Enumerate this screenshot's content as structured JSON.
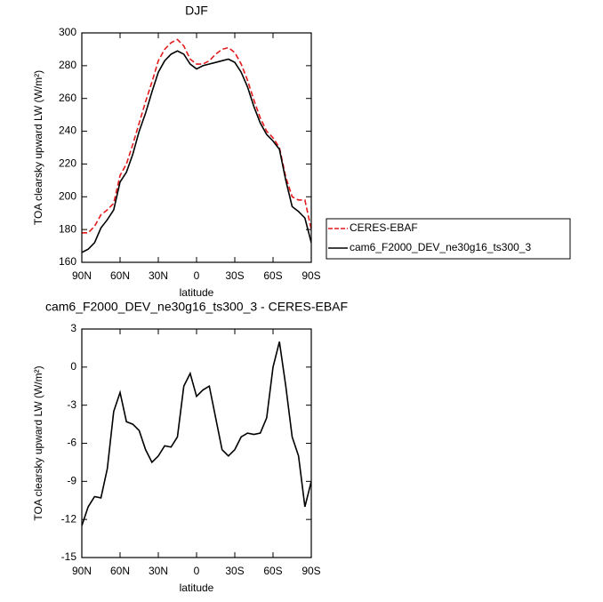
{
  "chart_data": [
    {
      "type": "line",
      "title": "DJF",
      "xlabel": "latitude",
      "ylabel": "TOA clearsky upward LW (W/m²)",
      "x": [
        90,
        85,
        80,
        75,
        70,
        65,
        60,
        55,
        50,
        45,
        40,
        35,
        30,
        25,
        20,
        15,
        10,
        5,
        0,
        -5,
        -10,
        -15,
        -20,
        -25,
        -30,
        -35,
        -40,
        -45,
        -50,
        -55,
        -60,
        -65,
        -70,
        -75,
        -80,
        -85,
        -90
      ],
      "xlim": [
        90,
        -90
      ],
      "xticks": [
        {
          "value": 90,
          "label": "90N"
        },
        {
          "value": 60,
          "label": "60N"
        },
        {
          "value": 30,
          "label": "30N"
        },
        0,
        {
          "value": -30,
          "label": "30S"
        },
        {
          "value": -60,
          "label": "60S"
        },
        {
          "value": -90,
          "label": "90S"
        }
      ],
      "ylim": [
        160,
        300
      ],
      "yticks": [
        160,
        180,
        200,
        220,
        240,
        260,
        280,
        300
      ],
      "legend": "right",
      "series": [
        {
          "name": "CERES-EBAF",
          "color": "#e41a1c",
          "style": "dashed",
          "values": [
            178,
            178,
            182,
            189,
            192,
            196,
            213,
            220,
            232,
            245,
            258,
            270,
            283,
            290,
            294,
            296,
            292,
            284,
            281,
            281,
            283,
            287,
            290,
            291,
            288,
            281,
            271,
            259,
            248,
            240,
            236,
            230,
            212,
            200,
            198,
            198,
            180
          ]
        },
        {
          "name": "cam6_F2000_DEV_ne30g16_ts300_3",
          "color": "#000000",
          "style": "solid",
          "values": [
            166,
            168,
            172,
            181,
            186,
            192,
            209,
            215,
            226,
            240,
            251,
            264,
            276,
            283,
            287,
            289,
            287,
            281,
            278,
            280,
            281,
            282,
            283,
            284,
            282,
            276,
            267,
            255,
            245,
            238,
            234,
            229,
            210,
            194,
            191,
            187,
            172
          ]
        }
      ]
    },
    {
      "type": "line",
      "title": "cam6_F2000_DEV_ne30g16_ts300_3 - CERES-EBAF",
      "xlabel": "latitude",
      "ylabel": "TOA clearsky upward LW (W/m²)",
      "x": [
        90,
        85,
        80,
        75,
        70,
        65,
        60,
        55,
        50,
        45,
        40,
        35,
        30,
        25,
        20,
        15,
        10,
        5,
        0,
        -5,
        -10,
        -15,
        -20,
        -25,
        -30,
        -35,
        -40,
        -45,
        -50,
        -55,
        -60,
        -65,
        -70,
        -75,
        -80,
        -85,
        -90
      ],
      "xlim": [
        90,
        -90
      ],
      "xticks": [
        {
          "value": 90,
          "label": "90N"
        },
        {
          "value": 60,
          "label": "60N"
        },
        {
          "value": 30,
          "label": "30N"
        },
        0,
        {
          "value": -30,
          "label": "30S"
        },
        {
          "value": -60,
          "label": "60S"
        },
        {
          "value": -90,
          "label": "90S"
        }
      ],
      "ylim": [
        -15,
        3
      ],
      "yticks": [
        -15,
        -12,
        -9,
        -6,
        -3,
        0,
        3
      ],
      "series": [
        {
          "color": "#000000",
          "style": "solid",
          "values": [
            -12.5,
            -11,
            -10.2,
            -10.3,
            -8,
            -3.5,
            -2,
            -4.3,
            -4.5,
            -5,
            -6.5,
            -7.5,
            -7,
            -6.2,
            -6.3,
            -5.5,
            -1.5,
            -0.5,
            -2.3,
            -1.8,
            -1.5,
            -4,
            -6.5,
            -7,
            -6.5,
            -5.5,
            -5.2,
            -5.3,
            -5.2,
            -4,
            0,
            2,
            -1.5,
            -5.5,
            -7,
            -11,
            -9
          ]
        }
      ]
    }
  ]
}
